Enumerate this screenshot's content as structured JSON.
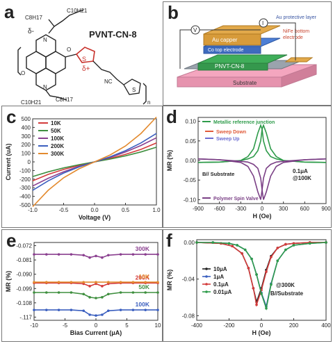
{
  "panels": {
    "a": {
      "label": "a",
      "molecule_name": "PVNT-CN-8",
      "chains": [
        "C8H17",
        "C10H21",
        "C8H17",
        "C10H21"
      ],
      "delta_minus": "δ-",
      "delta_plus": "δ+",
      "nc": "NC",
      "o": "O",
      "n": "N",
      "s": "S",
      "subscript_n": "n"
    },
    "b": {
      "label": "b",
      "layers": [
        "Au capper",
        "Co top electrode",
        "PNVT-CN-8",
        "Substrate"
      ],
      "annotations": [
        "Au protective layer",
        "NiFe bottom electrode"
      ],
      "meters": [
        "V",
        "I"
      ],
      "colors": {
        "au": "#e2a94a",
        "co": "#4d7fd6",
        "pnvt": "#3fae59",
        "substrate": "#f4a6bf",
        "nife": "#9aa3ad",
        "annot": "#c8452f"
      }
    },
    "c": {
      "label": "c"
    },
    "d": {
      "label": "d"
    },
    "e": {
      "label": "e"
    },
    "f": {
      "label": "f"
    }
  },
  "chart_data": [
    {
      "id": "c",
      "type": "line",
      "xlabel": "Voltage (V)",
      "ylabel": "Current (uA)",
      "xlim": [
        -1.0,
        1.0
      ],
      "ylim": [
        -500,
        500
      ],
      "xticks": [
        "-1.0",
        "-0.5",
        "0.0",
        "0.5",
        "1.0"
      ],
      "yticks": [
        "500",
        "400",
        "300",
        "200",
        "100",
        "0",
        "-100",
        "-200",
        "-300",
        "-400",
        "-500"
      ],
      "grid": false,
      "legend_position": "top-left",
      "series": [
        {
          "name": "10K",
          "color": "#d33b3b",
          "x": [
            -1,
            -0.75,
            -0.5,
            -0.25,
            0,
            0.25,
            0.5,
            0.75,
            1
          ],
          "y": [
            -220,
            -145,
            -88,
            -40,
            0,
            40,
            88,
            145,
            220
          ]
        },
        {
          "name": "50K",
          "color": "#3f8f3f",
          "x": [
            -1,
            -0.75,
            -0.5,
            -0.25,
            0,
            0.25,
            0.5,
            0.75,
            1
          ],
          "y": [
            -170,
            -115,
            -70,
            -32,
            0,
            32,
            70,
            115,
            170
          ]
        },
        {
          "name": "100K",
          "color": "#8a3f8f",
          "x": [
            -1,
            -0.75,
            -0.5,
            -0.25,
            0,
            0.25,
            0.5,
            0.75,
            1
          ],
          "y": [
            -280,
            -190,
            -115,
            -52,
            0,
            52,
            115,
            190,
            280
          ]
        },
        {
          "name": "200K",
          "color": "#3b5fbf",
          "x": [
            -1,
            -0.75,
            -0.5,
            -0.25,
            0,
            0.25,
            0.5,
            0.75,
            1
          ],
          "y": [
            -330,
            -220,
            -130,
            -58,
            0,
            58,
            130,
            220,
            330
          ]
        },
        {
          "name": "300K",
          "color": "#e38a2e",
          "x": [
            -1,
            -0.75,
            -0.5,
            -0.25,
            0,
            0.25,
            0.5,
            0.75,
            1
          ],
          "y": [
            -520,
            -330,
            -185,
            -80,
            0,
            80,
            185,
            330,
            520
          ]
        }
      ]
    },
    {
      "id": "d",
      "type": "line",
      "xlabel": "H (Oe)",
      "ylabel": "MR (%)",
      "xlim": [
        -900,
        900
      ],
      "ylim": [
        -0.11,
        0.11
      ],
      "xticks": [
        "-900",
        "-600",
        "-300",
        "0",
        "300",
        "600",
        "900"
      ],
      "yticks": [
        "0.10",
        "0.05",
        "0.00",
        "-0.05",
        "-0.10"
      ],
      "legend": [
        "Metallic reference junction",
        "Sweep Down",
        "Sweep Up",
        "Polymer Spin Valve"
      ],
      "legend_colors": [
        "#2e9b4a",
        "#e05a3a",
        "#6b6bd1",
        "#7a3f85"
      ],
      "annotations": [
        "B// Substrate",
        "0.1μA",
        "@100K"
      ],
      "series": [
        {
          "name": "Metallic reference junction",
          "color": "#2e9b4a",
          "x": [
            -900,
            -600,
            -300,
            -200,
            -120,
            -60,
            -20,
            0,
            20,
            60,
            120,
            200,
            300,
            600,
            900
          ],
          "y": [
            -0.005,
            -0.004,
            0.0,
            0.01,
            0.03,
            0.07,
            0.09,
            0.08,
            0.05,
            0.025,
            0.01,
            0.004,
            0.0,
            -0.004,
            -0.005
          ]
        },
        {
          "name": "Metallic reference junction",
          "color": "#2e9b4a",
          "x": [
            -900,
            -600,
            -300,
            -200,
            -120,
            -60,
            -20,
            0,
            20,
            60,
            120,
            200,
            300,
            600,
            900
          ],
          "y": [
            -0.005,
            -0.004,
            0.0,
            0.004,
            0.01,
            0.025,
            0.05,
            0.08,
            0.09,
            0.07,
            0.03,
            0.01,
            0.0,
            -0.004,
            -0.005
          ]
        },
        {
          "name": "Polymer Spin Valve",
          "color": "#7a3f85",
          "x": [
            -900,
            -600,
            -300,
            -200,
            -120,
            -60,
            -20,
            0,
            20,
            60,
            120,
            200,
            300,
            600,
            900
          ],
          "y": [
            0.004,
            0.002,
            -0.005,
            -0.015,
            -0.04,
            -0.08,
            -0.1,
            -0.075,
            -0.045,
            -0.02,
            -0.01,
            -0.004,
            -0.002,
            0.002,
            0.004
          ]
        },
        {
          "name": "Polymer Spin Valve",
          "color": "#7a3f85",
          "x": [
            -900,
            -600,
            -300,
            -200,
            -120,
            -60,
            -20,
            0,
            20,
            60,
            120,
            200,
            300,
            600,
            900
          ],
          "y": [
            0.004,
            0.002,
            -0.002,
            -0.004,
            -0.01,
            -0.02,
            -0.045,
            -0.075,
            -0.1,
            -0.08,
            -0.04,
            -0.015,
            -0.005,
            0.002,
            0.004
          ]
        }
      ]
    },
    {
      "id": "e",
      "type": "line",
      "xlabel": "Bias Current (μA)",
      "ylabel": "MR (%)",
      "xlim": [
        -10,
        10
      ],
      "xticks": [
        "-10",
        "-5",
        "0",
        "5",
        "10"
      ],
      "yticks": [
        "-.117",
        "-0.108",
        "-0.099",
        "-0.090",
        "-0.081",
        "-0.072"
      ],
      "series_labels": [
        "100K",
        "50K",
        "200K",
        "10K",
        "300K"
      ],
      "series": [
        {
          "name": "100K",
          "color": "#3b5fbf",
          "x": [
            -10,
            -8,
            -6,
            -4,
            -2,
            -1,
            0,
            1,
            2,
            4,
            6,
            8,
            10
          ],
          "y": [
            -0.1125,
            -0.1125,
            -0.1125,
            -0.1125,
            -0.113,
            -0.1155,
            -0.116,
            -0.1155,
            -0.113,
            -0.1125,
            -0.1125,
            -0.1125,
            -0.1125
          ]
        },
        {
          "name": "50K",
          "color": "#3f8f3f",
          "x": [
            -10,
            -8,
            -6,
            -4,
            -2,
            -1,
            0,
            1,
            2,
            4,
            6,
            8,
            10
          ],
          "y": [
            -0.1015,
            -0.1015,
            -0.1015,
            -0.1015,
            -0.1025,
            -0.1045,
            -0.105,
            -0.1045,
            -0.1025,
            -0.1015,
            -0.1015,
            -0.1015,
            -0.1015
          ]
        },
        {
          "name": "200K",
          "color": "#d33b3b",
          "x": [
            -10,
            -8,
            -6,
            -4,
            -2,
            -1,
            0,
            1,
            2,
            4,
            6,
            8,
            10
          ],
          "y": [
            -0.0955,
            -0.0955,
            -0.0955,
            -0.0955,
            -0.096,
            -0.0975,
            -0.096,
            -0.0975,
            -0.096,
            -0.0955,
            -0.0955,
            -0.0955,
            -0.0955
          ]
        },
        {
          "name": "10K",
          "color": "#e38a2e",
          "x": [
            -10,
            -8,
            -6,
            -4,
            -2,
            0,
            2,
            4,
            6,
            8,
            10
          ],
          "y": [
            -0.095,
            -0.095,
            -0.095,
            -0.095,
            -0.095,
            -0.095,
            -0.095,
            -0.095,
            -0.095,
            -0.095,
            -0.095
          ]
        },
        {
          "name": "300K",
          "color": "#8a3f8f",
          "x": [
            -10,
            -8,
            -6,
            -4,
            -2,
            -1,
            0,
            1,
            2,
            4,
            6,
            8,
            10
          ],
          "y": [
            -0.0775,
            -0.0775,
            -0.0775,
            -0.0775,
            -0.078,
            -0.0795,
            -0.0785,
            -0.0795,
            -0.078,
            -0.0775,
            -0.0775,
            -0.0775,
            -0.0775
          ]
        }
      ]
    },
    {
      "id": "f",
      "type": "line",
      "xlabel": "H (Oe)",
      "ylabel": "MR (%)",
      "xlim": [
        -400,
        400
      ],
      "ylim": [
        -0.085,
        0.003
      ],
      "xticks": [
        "-400",
        "-200",
        "0",
        "200",
        "400"
      ],
      "yticks": [
        "0.00",
        "-0.04",
        "-0.08"
      ],
      "legend": [
        "10μA",
        "1μA",
        "0.1μA",
        "0.01μA"
      ],
      "annotations": [
        "@300K",
        "B//Substrate"
      ],
      "series": [
        {
          "name": "10μA",
          "color": "#222222",
          "x": [
            -400,
            -250,
            -180,
            -120,
            -80,
            -50,
            -30,
            0,
            30,
            60,
            100,
            150,
            200,
            300,
            400
          ],
          "y": [
            0,
            -0.001,
            -0.004,
            -0.012,
            -0.028,
            -0.05,
            -0.065,
            -0.05,
            -0.03,
            -0.015,
            -0.006,
            -0.002,
            -0.001,
            0,
            0
          ]
        },
        {
          "name": "1μA",
          "color": "#3b5fbf",
          "x": [
            -400,
            -300,
            -200,
            -150,
            -100,
            -60,
            -30,
            0,
            30,
            60,
            100,
            150,
            200,
            300,
            400
          ],
          "y": [
            0,
            0,
            -0.001,
            -0.003,
            -0.008,
            -0.018,
            -0.035,
            -0.055,
            -0.07,
            -0.045,
            -0.02,
            -0.008,
            -0.003,
            -0.001,
            0
          ]
        },
        {
          "name": "0.1μA",
          "color": "#d33b3b",
          "x": [
            -400,
            -250,
            -180,
            -120,
            -80,
            -50,
            -30,
            0,
            30,
            60,
            100,
            150,
            200,
            300,
            400
          ],
          "y": [
            0,
            -0.001,
            -0.004,
            -0.012,
            -0.028,
            -0.05,
            -0.068,
            -0.052,
            -0.032,
            -0.016,
            -0.006,
            -0.002,
            -0.001,
            0,
            0
          ]
        },
        {
          "name": "0.01μA",
          "color": "#2e9b4a",
          "x": [
            -400,
            -300,
            -200,
            -150,
            -100,
            -60,
            -30,
            0,
            30,
            60,
            100,
            150,
            200,
            300,
            400
          ],
          "y": [
            0,
            0,
            -0.001,
            -0.003,
            -0.008,
            -0.018,
            -0.035,
            -0.056,
            -0.072,
            -0.046,
            -0.02,
            -0.008,
            -0.003,
            -0.001,
            0
          ]
        }
      ]
    }
  ]
}
